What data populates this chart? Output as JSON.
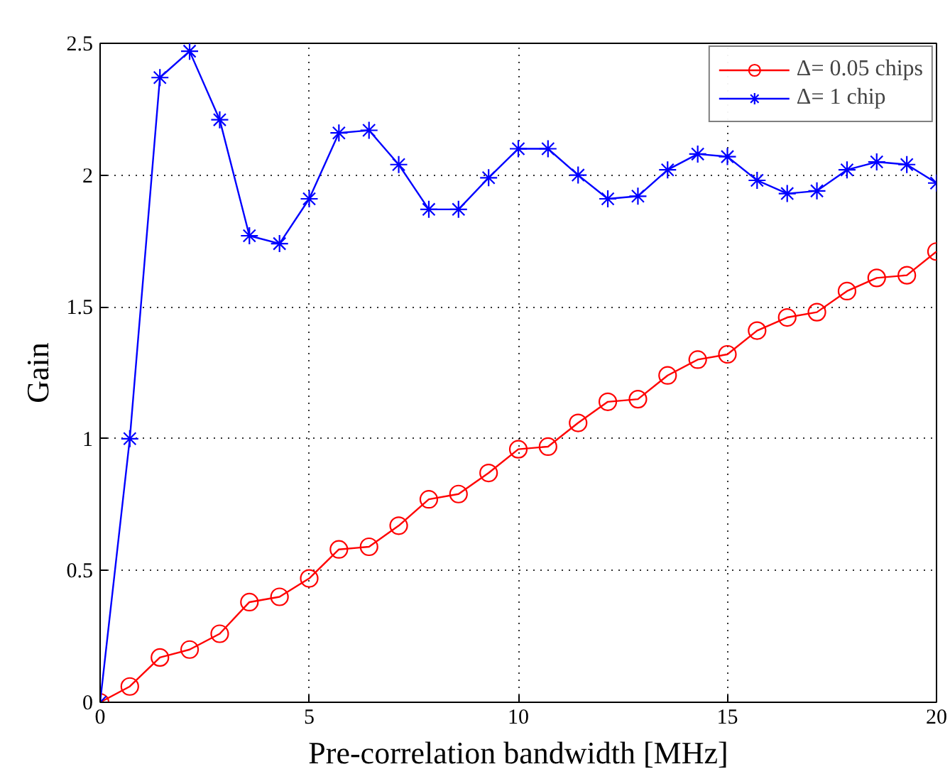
{
  "chart_data": {
    "type": "line",
    "xlabel": "Pre-correlation bandwidth [MHz]",
    "ylabel": "Gain",
    "x": [
      0,
      0.71,
      1.43,
      2.14,
      2.86,
      3.57,
      4.29,
      5,
      5.71,
      6.43,
      7.14,
      7.86,
      8.57,
      9.29,
      10,
      10.71,
      11.43,
      12.14,
      12.86,
      13.57,
      14.29,
      15,
      15.71,
      16.43,
      17.14,
      17.86,
      18.57,
      19.29,
      20
    ],
    "series": [
      {
        "name": "Δ= 0.05 chips",
        "color": "#ff0000",
        "marker": "circle",
        "values": [
          0,
          0.06,
          0.17,
          0.2,
          0.26,
          0.38,
          0.4,
          0.47,
          0.58,
          0.59,
          0.67,
          0.77,
          0.79,
          0.87,
          0.96,
          0.97,
          1.06,
          1.14,
          1.15,
          1.24,
          1.3,
          1.32,
          1.41,
          1.46,
          1.48,
          1.56,
          1.61,
          1.62,
          1.71
        ]
      },
      {
        "name": "Δ= 1 chip",
        "color": "#0000ff",
        "marker": "cross",
        "values": [
          0,
          1.0,
          2.37,
          2.47,
          2.21,
          1.77,
          1.74,
          1.91,
          2.16,
          2.17,
          2.04,
          1.87,
          1.87,
          1.99,
          2.1,
          2.1,
          2.0,
          1.91,
          1.92,
          2.02,
          2.08,
          2.07,
          1.98,
          1.93,
          1.94,
          2.02,
          2.05,
          2.04,
          1.97
        ]
      }
    ],
    "xlim": [
      0,
      20
    ],
    "ylim": [
      0,
      2.5
    ],
    "xticks": [
      0,
      5,
      10,
      15,
      20
    ],
    "yticks": [
      0,
      0.5,
      1,
      1.5,
      2,
      2.5
    ],
    "grid": true,
    "legend": "top right",
    "line_style": "solid"
  }
}
